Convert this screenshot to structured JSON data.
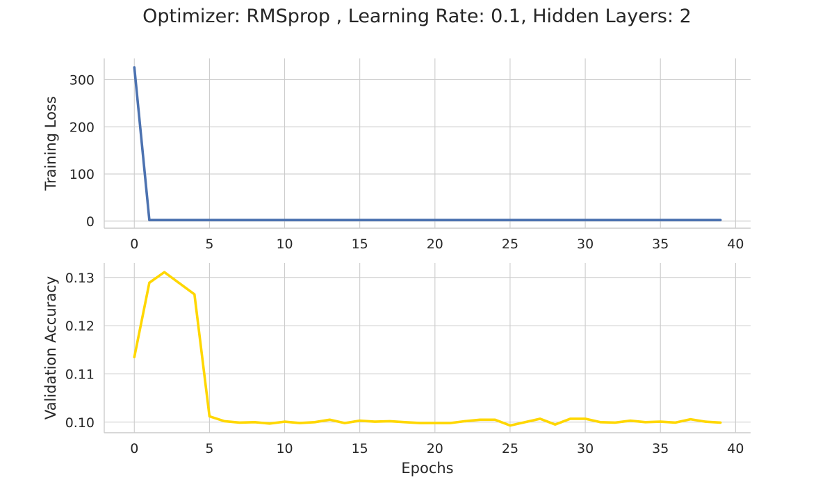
{
  "suptitle": "Optimizer: RMSprop , Learning Rate: 0.1, Hidden Layers: 2",
  "colors": {
    "loss": "#4c72b0",
    "accuracy": "#ffd700",
    "grid": "#cccccc",
    "text": "#262626"
  },
  "chart_data": [
    {
      "type": "line",
      "xlabel": "",
      "ylabel": "Training Loss",
      "xticks": [
        0,
        5,
        10,
        15,
        20,
        25,
        30,
        35,
        40
      ],
      "yticks": [
        0,
        100,
        200,
        300
      ],
      "ytick_labels": [
        "0",
        "100",
        "200",
        "300"
      ],
      "xlim": [
        -2,
        41
      ],
      "ylim": [
        -15,
        345
      ],
      "grid": true,
      "series": [
        {
          "color": "#4c72b0",
          "x": [
            0,
            1,
            2,
            3,
            4,
            5,
            6,
            7,
            8,
            9,
            10,
            11,
            12,
            13,
            14,
            15,
            16,
            17,
            18,
            19,
            20,
            21,
            22,
            23,
            24,
            25,
            26,
            27,
            28,
            29,
            30,
            31,
            32,
            33,
            34,
            35,
            36,
            37,
            38,
            39
          ],
          "values": [
            326,
            2.3,
            2.3,
            2.3,
            2.3,
            2.3,
            2.3,
            2.3,
            2.3,
            2.3,
            2.3,
            2.3,
            2.3,
            2.3,
            2.3,
            2.3,
            2.3,
            2.3,
            2.3,
            2.3,
            2.3,
            2.3,
            2.3,
            2.3,
            2.3,
            2.3,
            2.3,
            2.3,
            2.3,
            2.3,
            2.3,
            2.3,
            2.3,
            2.3,
            2.3,
            2.3,
            2.3,
            2.3,
            2.3,
            2.3
          ]
        }
      ]
    },
    {
      "type": "line",
      "xlabel": "Epochs",
      "ylabel": "Validation Accuracy",
      "xticks": [
        0,
        5,
        10,
        15,
        20,
        25,
        30,
        35,
        40
      ],
      "yticks": [
        0.1,
        0.11,
        0.12,
        0.13
      ],
      "ytick_labels": [
        "0.10",
        "0.11",
        "0.12",
        "0.13"
      ],
      "xlim": [
        -2,
        41
      ],
      "ylim": [
        0.0978,
        0.133
      ],
      "grid": true,
      "series": [
        {
          "color": "#ffd700",
          "x": [
            0,
            1,
            2,
            3,
            4,
            5,
            6,
            7,
            8,
            9,
            10,
            11,
            12,
            13,
            14,
            15,
            16,
            17,
            18,
            19,
            20,
            21,
            22,
            23,
            24,
            25,
            26,
            27,
            28,
            29,
            30,
            31,
            32,
            33,
            34,
            35,
            36,
            37,
            38,
            39
          ],
          "values": [
            0.1135,
            0.1289,
            0.1311,
            0.1288,
            0.1265,
            0.1012,
            0.1002,
            0.0999,
            0.1,
            0.0997,
            0.1001,
            0.0998,
            0.1,
            0.1005,
            0.0998,
            0.1003,
            0.1001,
            0.1002,
            0.1,
            0.0998,
            0.0998,
            0.0998,
            0.1002,
            0.1005,
            0.1005,
            0.0993,
            0.1,
            0.1007,
            0.0995,
            0.1007,
            0.1007,
            0.1,
            0.0999,
            0.1003,
            0.1,
            0.1001,
            0.0999,
            0.1006,
            0.1001,
            0.0999
          ]
        }
      ]
    }
  ]
}
